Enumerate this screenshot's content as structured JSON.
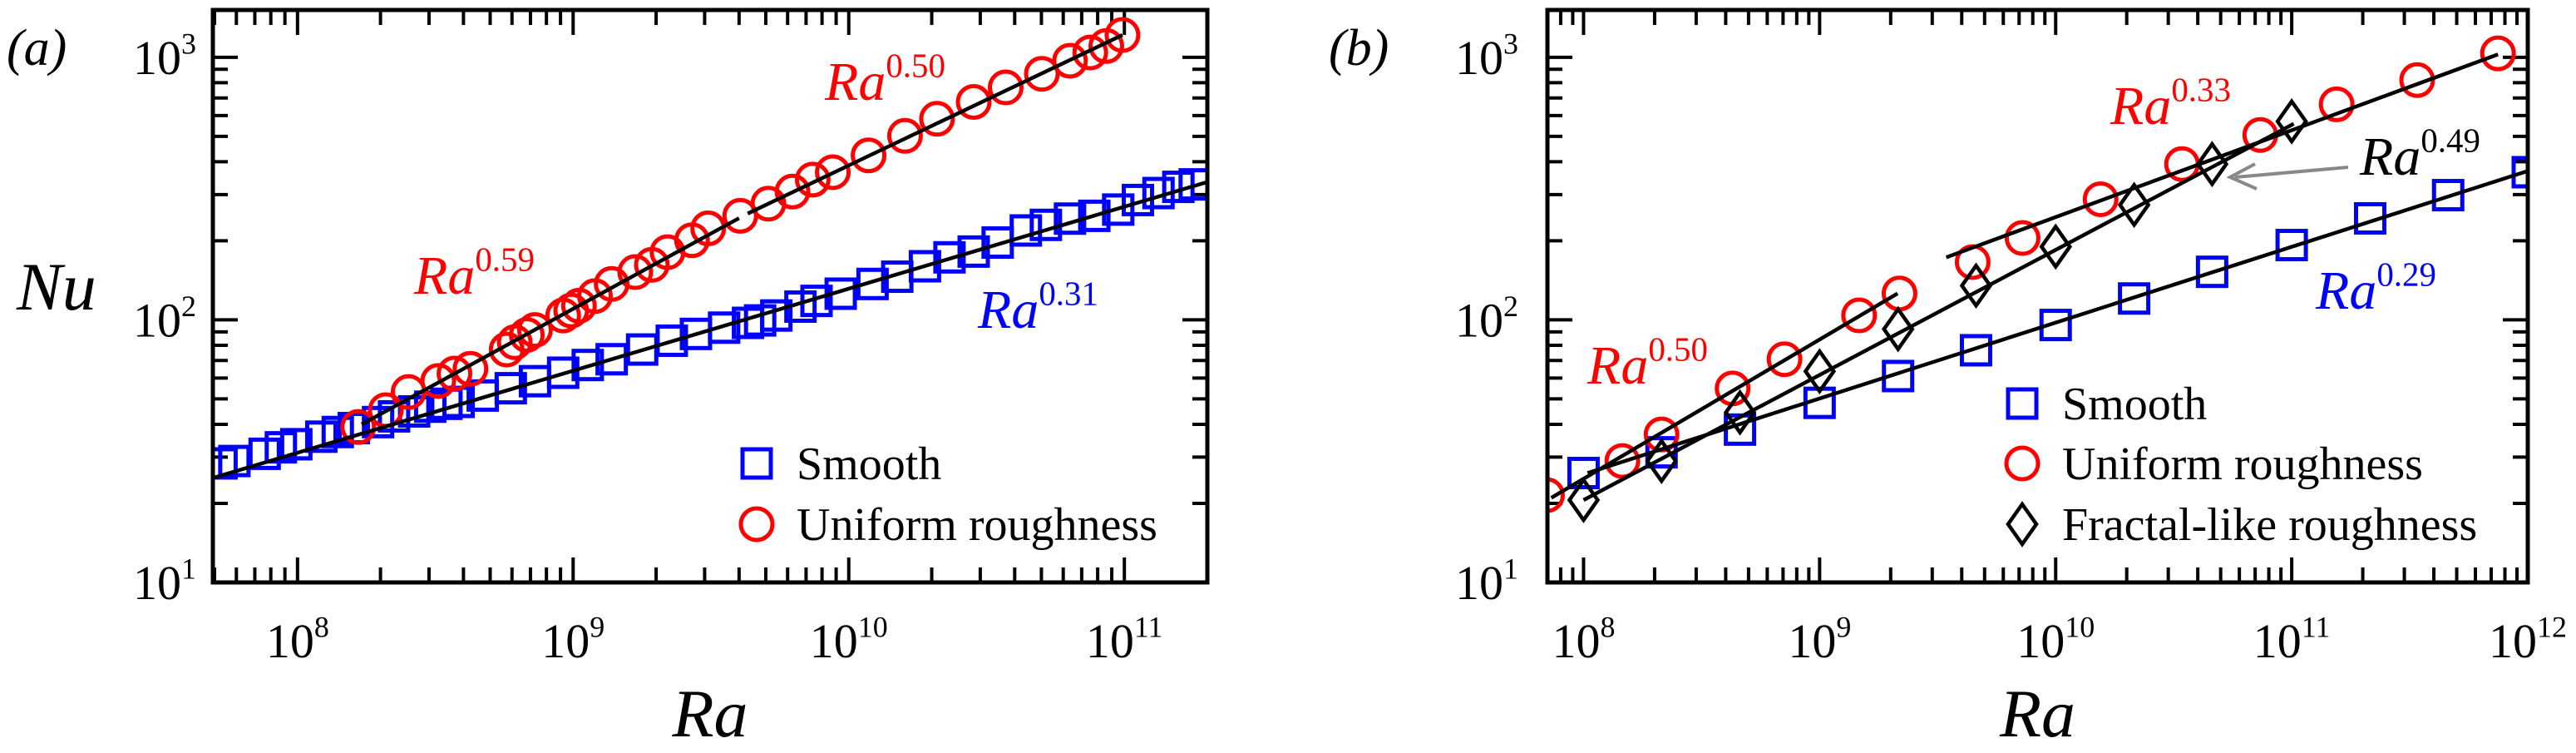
{
  "colors": {
    "smooth": "#0000ff",
    "uniform": "#ff0000",
    "fractal": "#000000",
    "fit": "#000000",
    "arrow": "#888888"
  },
  "chart_data": [
    {
      "panel_label": "(a)",
      "type": "scatter",
      "xlabel": "Ra",
      "ylabel": "Nu",
      "xscale": "log",
      "yscale": "log",
      "xlim": [
        49300000.0,
        200000000000.0
      ],
      "ylim": [
        10,
        1514
      ],
      "xticks": [
        {
          "base": "10",
          "exp": "8",
          "value": 100000000.0
        },
        {
          "base": "10",
          "exp": "9",
          "value": 1000000000.0
        },
        {
          "base": "10",
          "exp": "10",
          "value": 10000000000.0
        },
        {
          "base": "10",
          "exp": "11",
          "value": 100000000000.0
        }
      ],
      "yticks": [
        {
          "base": "10",
          "exp": "1",
          "value": 10
        },
        {
          "base": "10",
          "exp": "2",
          "value": 100
        },
        {
          "base": "10",
          "exp": "3",
          "value": 1000
        }
      ],
      "legend_position": "bottom-right",
      "series": [
        {
          "name": "Smooth",
          "marker": "square",
          "color": "#0000ff",
          "x": [
            53000000.0,
            59000000.0,
            76000000.0,
            87000000.0,
            99000000.0,
            122000000.0,
            140000000.0,
            160000000.0,
            196000000.0,
            224000000.0,
            265000000.0,
            303000000.0,
            347000000.0,
            384000000.0,
            470000000.0,
            594000000.0,
            727000000.0,
            920000000.0,
            1130000000.0,
            1380000000.0,
            1780000000.0,
            2280000000.0,
            2790000000.0,
            3530000000.0,
            4310000000.0,
            4770000000.0,
            5460000000.0,
            6680000000.0,
            7640000000.0,
            9350000000.0,
            12200000000.0,
            15000000000.0,
            18900000000.0,
            23200000000.0,
            28400000000.0,
            34700000000.0,
            43900000000.0,
            51900000000.0,
            63500000000.0,
            77800000000.0,
            95000000000.0,
            112000000000.0,
            133000000000.0,
            157000000000.0,
            180000000000.0
          ],
          "y": [
            28.4,
            29.0,
            30.9,
            32.7,
            33.6,
            35.9,
            37.4,
            38.7,
            40.8,
            42.9,
            44.8,
            46.7,
            47.9,
            48.7,
            51.5,
            54.9,
            58.4,
            62.9,
            67.3,
            70.8,
            77.1,
            83.3,
            88.4,
            93.4,
            97.4,
            99.5,
            103.9,
            112.3,
            118.1,
            125.8,
            137,
            146,
            160,
            173,
            182,
            197,
            219,
            230,
            243,
            249,
            263,
            286,
            304,
            321,
            328
          ]
        },
        {
          "name": "Uniform roughness",
          "marker": "circle",
          "color": "#ff0000",
          "x": [
            166000000.0,
            209000000.0,
            253000000.0,
            324000000.0,
            371000000.0,
            424000000.0,
            574000000.0,
            614000000.0,
            679000000.0,
            727000000.0,
            920000000.0,
            984000000.0,
            1050000000.0,
            1200000000.0,
            1380000000.0,
            1680000000.0,
            1930000000.0,
            2200000000.0,
            2700000000.0,
            3090000000.0,
            4040000000.0,
            5110000000.0,
            6250000000.0,
            7400000000.0,
            8750000000.0,
            11800000000.0,
            16000000000.0,
            20900000000.0,
            28400000000.0,
            37100000000.0,
            50200000000.0,
            63500000000.0,
            75200000000.0,
            86000000000.0,
            98400000000.0
          ],
          "y": [
            39.1,
            45.3,
            53.1,
            58.5,
            62.4,
            65.1,
            77.1,
            82.2,
            87.6,
            91.5,
            103.9,
            108.5,
            113.2,
            123.2,
            137,
            152,
            162,
            181,
            201,
            223,
            249,
            277,
            308,
            342,
            365,
            423,
            502,
            583,
            676,
            768,
            865,
            970,
            1043,
            1104,
            1216
          ]
        }
      ],
      "fits": [
        {
          "label": {
            "base": "Ra",
            "exp": "0.31"
          },
          "color": "#0000ff",
          "x": [
            49300000.0,
            200000000000.0
          ],
          "y": [
            25.0,
            335
          ]
        },
        {
          "label": {
            "base": "Ra",
            "exp": "0.59"
          },
          "color": "#ff0000",
          "x": [
            171000000.0,
            4000000000.0
          ],
          "y": [
            40,
            244
          ]
        },
        {
          "label": {
            "base": "Ra",
            "exp": "0.50"
          },
          "color": "#ff0000",
          "x": [
            4300000000.0,
            98400000000.0
          ],
          "y": [
            254,
            1216
          ]
        }
      ]
    },
    {
      "panel_label": "(b)",
      "type": "scatter",
      "xlabel": "Ra",
      "ylabel": "",
      "xscale": "log",
      "yscale": "log",
      "xlim": [
        70300000.0,
        1000000000000.0
      ],
      "ylim": [
        10,
        1514
      ],
      "xticks": [
        {
          "base": "10",
          "exp": "8",
          "value": 100000000.0
        },
        {
          "base": "10",
          "exp": "9",
          "value": 1000000000.0
        },
        {
          "base": "10",
          "exp": "10",
          "value": 10000000000.0
        },
        {
          "base": "10",
          "exp": "11",
          "value": 100000000000.0
        },
        {
          "base": "10",
          "exp": "12",
          "value": 1000000000000.0
        }
      ],
      "yticks": [
        {
          "base": "10",
          "exp": "1",
          "value": 10
        },
        {
          "base": "10",
          "exp": "2",
          "value": 100
        },
        {
          "base": "10",
          "exp": "3",
          "value": 1000
        }
      ],
      "legend_position": "bottom-right",
      "series": [
        {
          "name": "Smooth",
          "marker": "square",
          "color": "#0000ff",
          "x": [
            100000000.0,
            214000000.0,
            460000000.0,
            1000000000.0,
            2150000000.0,
            4600000000.0,
            10000000000.0,
            21500000000.0,
            46000000000.0,
            100000000000.0,
            215000000000.0,
            460000000000.0,
            1000000000000.0
          ],
          "y": [
            26.1,
            31.3,
            38.2,
            48.3,
            61.1,
            76.6,
            95.6,
            120.6,
            152.4,
            192.7,
            243.5,
            298.5,
            365
          ]
        },
        {
          "name": "Uniform roughness",
          "marker": "circle",
          "color": "#ff0000",
          "x": [
            70000000.0,
            146000000.0,
            214000000.0,
            428000000.0,
            710000000.0,
            1470000000.0,
            2180000000.0,
            4450000000.0,
            7240000000.0,
            15500000000.0,
            34300000000.0,
            73600000000.0,
            155000000000.0,
            340000000000.0,
            748000000000.0
          ],
          "y": [
            21.5,
            29.0,
            36.6,
            54.8,
            70.8,
            104,
            126,
            166,
            205,
            288,
            392,
            506,
            662,
            819,
            1035
          ]
        },
        {
          "name": "Fractal-like roughness",
          "marker": "diamond",
          "color": "#000000",
          "x": [
            100000000.0,
            214000000.0,
            460000000.0,
            1000000000.0,
            2150000000.0,
            4600000000.0,
            10000000000.0,
            21500000000.0,
            46000000000.0,
            100000000000.0
          ],
          "y": [
            20.6,
            29.0,
            44.4,
            63.7,
            92.2,
            135,
            190,
            274,
            392,
            570
          ]
        }
      ],
      "fits": [
        {
          "label": {
            "base": "Ra",
            "exp": "0.50"
          },
          "color": "#ff0000",
          "x": [
            73000000.0,
            2140000000.0
          ],
          "y": [
            21.0,
            126
          ]
        },
        {
          "label": {
            "base": "Ra",
            "exp": "0.29"
          },
          "color": "#0000ff",
          "x": [
            104000000.0,
            1000000000000.0
          ],
          "y": [
            26.1,
            369
          ]
        },
        {
          "label": {
            "base": "Ra",
            "exp": "0.49"
          },
          "color": "#000000",
          "x": [
            100000000.0,
            102000000000.0
          ],
          "y": [
            20.6,
            558
          ]
        },
        {
          "label": {
            "base": "Ra",
            "exp": "0.33"
          },
          "color": "#ff0000",
          "x": [
            3440000000.0,
            748000000000.0
          ],
          "y": [
            173,
            1026
          ]
        }
      ]
    }
  ]
}
